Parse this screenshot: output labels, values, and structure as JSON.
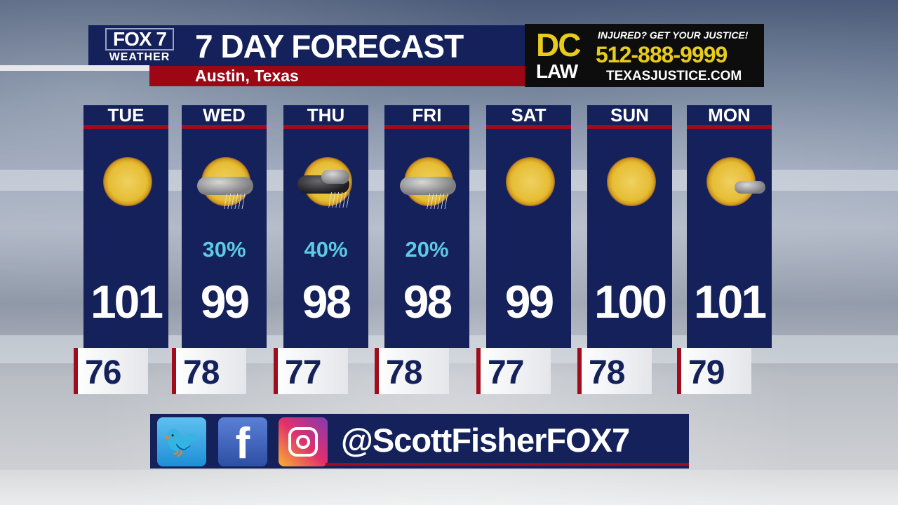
{
  "header": {
    "logo_line1": "FOX 7",
    "logo_line2": "WEATHER",
    "title": "7 DAY FORECAST",
    "location": "Austin, Texas"
  },
  "ad": {
    "brand_top": "DC",
    "brand_bottom": "LAW",
    "tagline": "INJURED? GET YOUR JUSTICE!",
    "phone": "512-888-9999",
    "url": "TEXASJUSTICE.COM"
  },
  "colors": {
    "panel": "#14215a",
    "accent_red": "#a00c1c",
    "rain_chance": "#5dcbe2",
    "ad_yellow": "#e8cc1c"
  },
  "days": [
    {
      "day": "TUE",
      "icon": "sunny-icon",
      "rain": "",
      "high": "101",
      "low": "76"
    },
    {
      "day": "WED",
      "icon": "sun-cloud-rain-icon",
      "rain": "30%",
      "high": "99",
      "low": "78"
    },
    {
      "day": "THU",
      "icon": "sun-thunderstorm-icon",
      "rain": "40%",
      "high": "98",
      "low": "77"
    },
    {
      "day": "FRI",
      "icon": "sun-cloud-rain-icon",
      "rain": "20%",
      "high": "98",
      "low": "78"
    },
    {
      "day": "SAT",
      "icon": "sunny-icon",
      "rain": "",
      "high": "99",
      "low": "77"
    },
    {
      "day": "SUN",
      "icon": "sunny-icon",
      "rain": "",
      "high": "100",
      "low": "78"
    },
    {
      "day": "MON",
      "icon": "mostly-sunny-icon",
      "rain": "",
      "high": "101",
      "low": "79"
    }
  ],
  "social": {
    "twitter": "twitter-icon",
    "facebook": "facebook-icon",
    "instagram": "instagram-icon",
    "handle": "@ScottFisherFOX7"
  }
}
